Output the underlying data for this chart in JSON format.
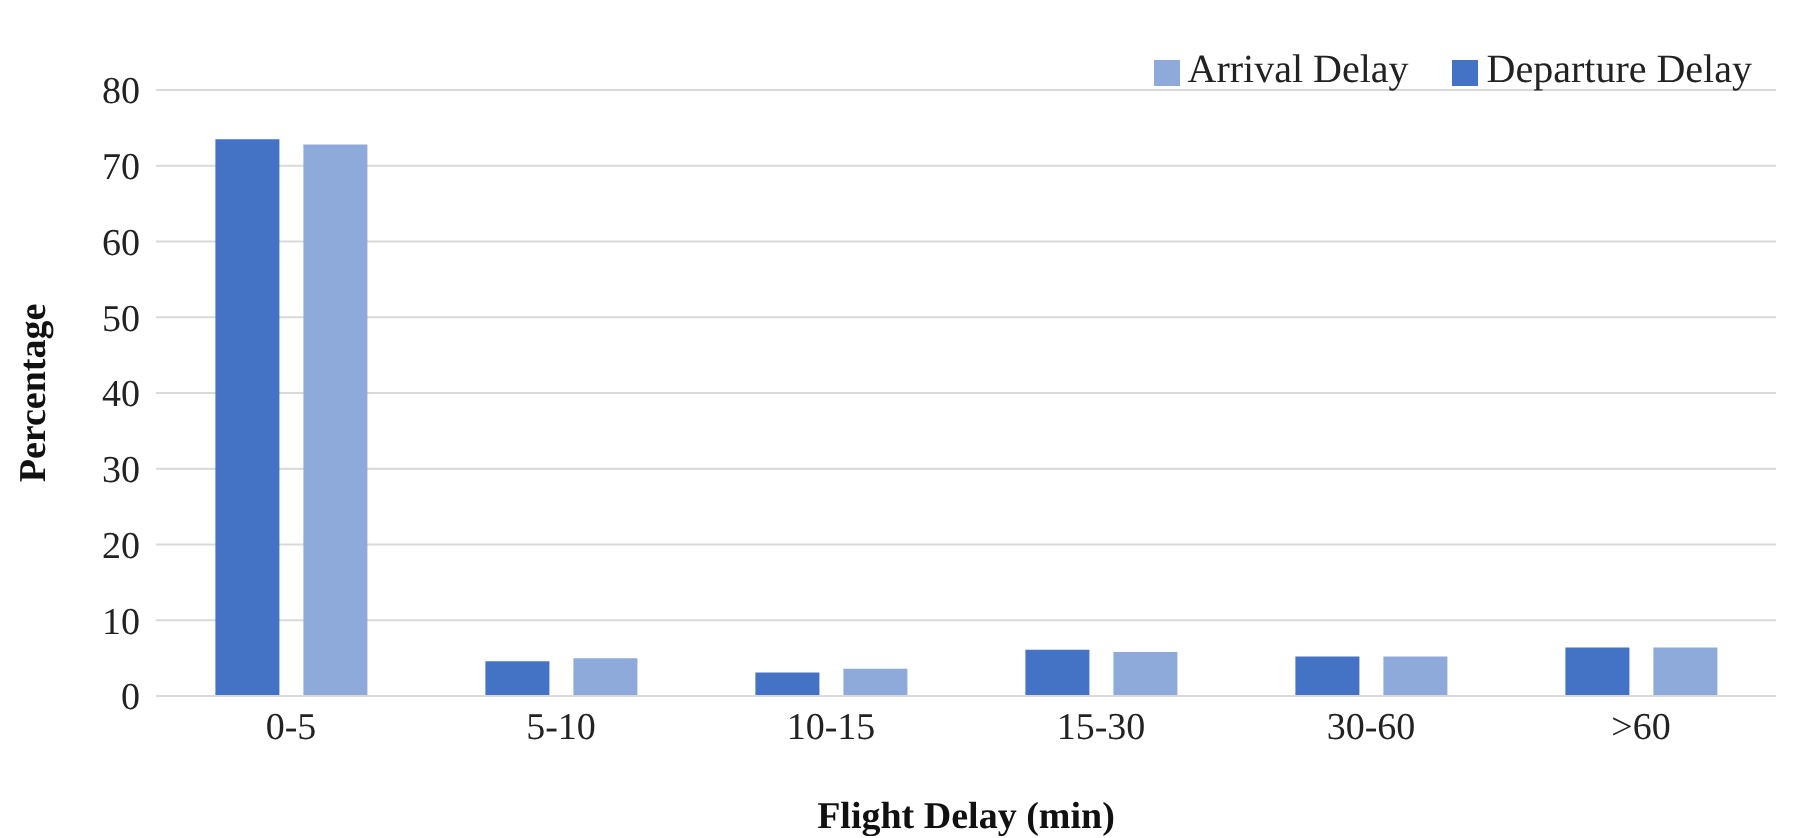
{
  "chart_data": {
    "type": "bar",
    "xlabel": "Flight Delay (min)",
    "ylabel": "Percentage",
    "categories": [
      "0-5",
      "5-10",
      "10-15",
      "15-30",
      "30-60",
      ">60"
    ],
    "series": [
      {
        "name": "Departure Delay",
        "color": "#4472c4",
        "values": [
          73.5,
          4.6,
          3.1,
          6.1,
          5.2,
          6.4
        ]
      },
      {
        "name": "Arrival Delay",
        "color": "#8eaadb",
        "values": [
          72.8,
          5.0,
          3.6,
          5.8,
          5.2,
          6.4
        ]
      }
    ],
    "ylim": [
      0,
      80
    ],
    "yticks": [
      0,
      10,
      20,
      30,
      40,
      50,
      60,
      70,
      80
    ],
    "grid": "y",
    "legend": "top right"
  }
}
